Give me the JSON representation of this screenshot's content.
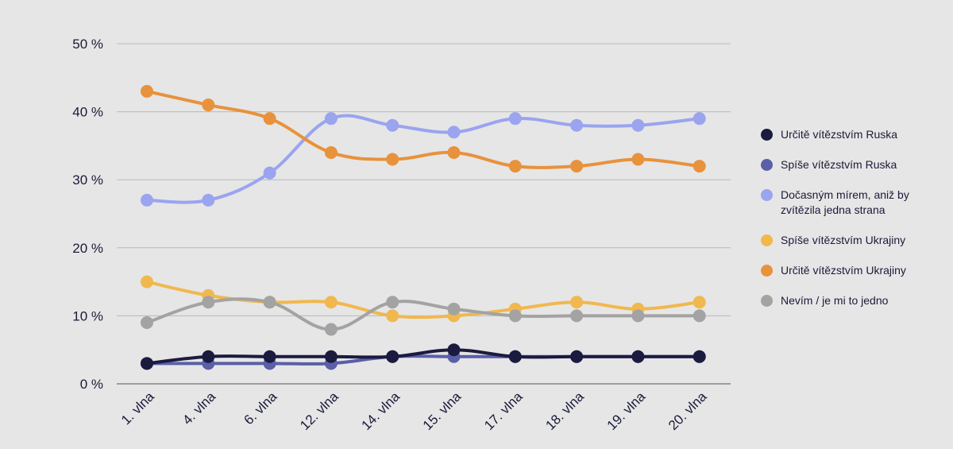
{
  "chart_data": {
    "type": "line",
    "categories": [
      "1. vlna",
      "4. vlna",
      "6. vlna",
      "12. vlna",
      "14. vlna",
      "15. vlna",
      "17. vlna",
      "18. vlna",
      "19. vlna",
      "20. vlna"
    ],
    "y_ticks": [
      "0 %",
      "10 %",
      "20 %",
      "30 %",
      "40 %",
      "50 %"
    ],
    "ylim": [
      0,
      50
    ],
    "grid": true,
    "legend_position": "right",
    "series": [
      {
        "name": "Určitě vítězstvím Ruska",
        "color": "#1b1a3f",
        "values": [
          3,
          4,
          4,
          4,
          4,
          5,
          4,
          4,
          4,
          4
        ]
      },
      {
        "name": "Spíše vítězstvím Ruska",
        "color": "#5a5fa8",
        "values": [
          3,
          3,
          3,
          3,
          4,
          4,
          4,
          4,
          4,
          4
        ]
      },
      {
        "name": "Dočasným mírem, aniž by zvítězila jedna strana",
        "color": "#9aa4ef",
        "values": [
          27,
          27,
          31,
          39,
          38,
          37,
          39,
          38,
          38,
          39
        ]
      },
      {
        "name": "Spíše vítězstvím Ukrajiny",
        "color": "#f0b84e",
        "values": [
          15,
          13,
          12,
          12,
          10,
          10,
          11,
          12,
          11,
          12
        ]
      },
      {
        "name": "Určitě vítězstvím Ukrajiny",
        "color": "#e8923c",
        "values": [
          43,
          41,
          39,
          34,
          33,
          34,
          32,
          32,
          33,
          32
        ]
      },
      {
        "name": "Nevím / je mi to jedno",
        "color": "#a3a3a3",
        "values": [
          9,
          12,
          12,
          8,
          12,
          11,
          10,
          10,
          10,
          10
        ]
      }
    ]
  }
}
